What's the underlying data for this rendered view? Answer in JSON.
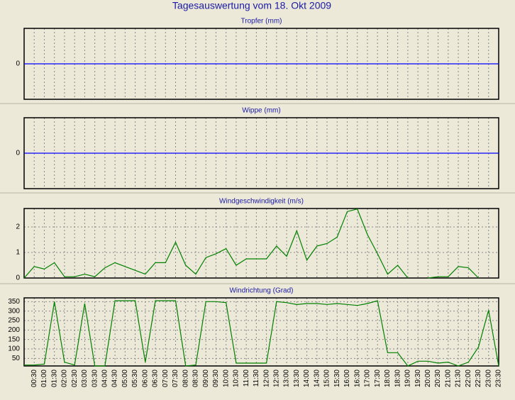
{
  "title": "Tagesauswertung vom 18. Okt 2009",
  "chart_data": [
    {
      "type": "line",
      "title": "Tropfer (mm)",
      "ylim": [
        -1,
        1
      ],
      "yticks": [
        0
      ],
      "grid": true,
      "series": [
        {
          "color": "#0000ff",
          "values": [
            0,
            0,
            0,
            0,
            0,
            0,
            0,
            0,
            0,
            0,
            0,
            0,
            0,
            0,
            0,
            0,
            0,
            0,
            0,
            0,
            0,
            0,
            0,
            0,
            0,
            0,
            0,
            0,
            0,
            0,
            0,
            0,
            0,
            0,
            0,
            0,
            0,
            0,
            0,
            0,
            0,
            0,
            0,
            0,
            0,
            0,
            0,
            0
          ]
        }
      ]
    },
    {
      "type": "line",
      "title": "Wippe (mm)",
      "ylim": [
        -1,
        1
      ],
      "yticks": [
        0
      ],
      "grid": true,
      "series": [
        {
          "color": "#0000ff",
          "values": [
            0,
            0,
            0,
            0,
            0,
            0,
            0,
            0,
            0,
            0,
            0,
            0,
            0,
            0,
            0,
            0,
            0,
            0,
            0,
            0,
            0,
            0,
            0,
            0,
            0,
            0,
            0,
            0,
            0,
            0,
            0,
            0,
            0,
            0,
            0,
            0,
            0,
            0,
            0,
            0,
            0,
            0,
            0,
            0,
            0,
            0,
            0,
            0
          ]
        }
      ]
    },
    {
      "type": "line",
      "title": "Windgeschwindigkeit (m/s)",
      "ylim": [
        0,
        2.72
      ],
      "yticks": [
        0,
        1,
        2
      ],
      "grid": true,
      "series": [
        {
          "color": "#008000",
          "values": [
            0,
            0.45,
            0.35,
            0.6,
            0.05,
            0.05,
            0.15,
            0.05,
            0.4,
            0.6,
            0.45,
            0.3,
            0.15,
            0.6,
            0.6,
            1.4,
            0.5,
            0.15,
            0.8,
            0.95,
            1.15,
            0.5,
            0.75,
            0.75,
            0.75,
            1.25,
            0.85,
            1.85,
            0.7,
            1.25,
            1.35,
            1.6,
            2.6,
            2.7,
            1.7,
            0.95,
            0.15,
            0.5,
            0,
            null,
            0,
            0.05,
            0.05,
            0.45,
            0.4,
            0,
            null,
            null
          ]
        }
      ]
    },
    {
      "type": "line",
      "title": "Windrichtung (Grad)",
      "ylim": [
        10,
        370
      ],
      "yticks": [
        50,
        100,
        150,
        200,
        250,
        300,
        350
      ],
      "grid": true,
      "categories": [
        null,
        "00:30",
        "01:00",
        "01:30",
        "02:00",
        "02:30",
        "03:00",
        "03:30",
        "04:00",
        "04:30",
        "05:00",
        "05:30",
        "06:00",
        "06:30",
        "07:00",
        "07:30",
        "08:00",
        "08:30",
        "09:00",
        "09:30",
        "10:00",
        "10:30",
        "11:00",
        "11:30",
        "12:00",
        "12:30",
        "13:00",
        "13:30",
        "14:00",
        "14:30",
        "15:00",
        "15:30",
        "16:00",
        "16:30",
        "17:00",
        "17:30",
        "18:00",
        "18:30",
        "19:00",
        "19:30",
        "20:00",
        "20:30",
        "21:00",
        "21:30",
        "22:00",
        "22:30",
        "23:00",
        "23:30"
      ],
      "series": [
        {
          "color": "#008000",
          "values": [
            15,
            15,
            20,
            350,
            30,
            15,
            340,
            10,
            10,
            355,
            355,
            355,
            30,
            355,
            355,
            355,
            10,
            15,
            350,
            350,
            345,
            25,
            25,
            25,
            25,
            350,
            345,
            335,
            340,
            340,
            335,
            340,
            335,
            330,
            340,
            355,
            80,
            80,
            10,
            35,
            35,
            25,
            30,
            10,
            30,
            110,
            305,
            10
          ]
        }
      ]
    }
  ]
}
